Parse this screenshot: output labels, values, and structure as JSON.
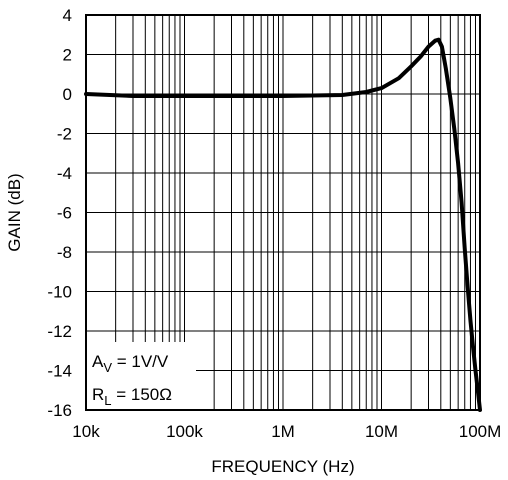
{
  "chart_data": {
    "type": "line",
    "xlabel": "FREQUENCY (Hz)",
    "ylabel": "GAIN (dB)",
    "x_scale": "log",
    "xlim": [
      10000,
      100000000
    ],
    "ylim": [
      -16,
      4
    ],
    "grid": true,
    "x_ticks": [
      {
        "value": 10000,
        "label": "10k"
      },
      {
        "value": 100000,
        "label": "100k"
      },
      {
        "value": 1000000,
        "label": "1M"
      },
      {
        "value": 10000000,
        "label": "10M"
      },
      {
        "value": 100000000,
        "label": "100M"
      }
    ],
    "y_ticks": [
      {
        "value": 4,
        "label": "4"
      },
      {
        "value": 2,
        "label": "2"
      },
      {
        "value": 0,
        "label": "0"
      },
      {
        "value": -2,
        "label": "-2"
      },
      {
        "value": -4,
        "label": "-4"
      },
      {
        "value": -6,
        "label": "-6"
      },
      {
        "value": -8,
        "label": "-8"
      },
      {
        "value": -10,
        "label": "-10"
      },
      {
        "value": -12,
        "label": "-12"
      },
      {
        "value": -14,
        "label": "-14"
      },
      {
        "value": -16,
        "label": "-16"
      }
    ],
    "series": [
      {
        "x": [
          10000,
          30000,
          100000,
          1000000,
          4000000,
          7000000,
          10000000,
          15000000,
          20000000,
          25000000,
          30000000,
          35000000,
          38000000,
          41000000,
          45000000,
          50000000,
          55000000,
          60000000,
          65000000,
          70000000,
          75000000,
          80000000,
          85000000,
          90000000,
          95000000,
          100000000
        ],
        "y": [
          0.0,
          -0.1,
          -0.1,
          -0.1,
          -0.05,
          0.1,
          0.3,
          0.8,
          1.4,
          1.9,
          2.4,
          2.7,
          2.75,
          2.4,
          1.3,
          -0.2,
          -1.8,
          -3.5,
          -5.5,
          -7.8,
          -9.8,
          -11.5,
          -12.8,
          -14.0,
          -15.0,
          -16.0
        ]
      }
    ],
    "annotations": {
      "av": {
        "main": "A",
        "sub": "V",
        "rest": " = 1V/V"
      },
      "rl": {
        "main": "R",
        "sub": "L",
        "rest": " = 150Ω"
      }
    }
  }
}
